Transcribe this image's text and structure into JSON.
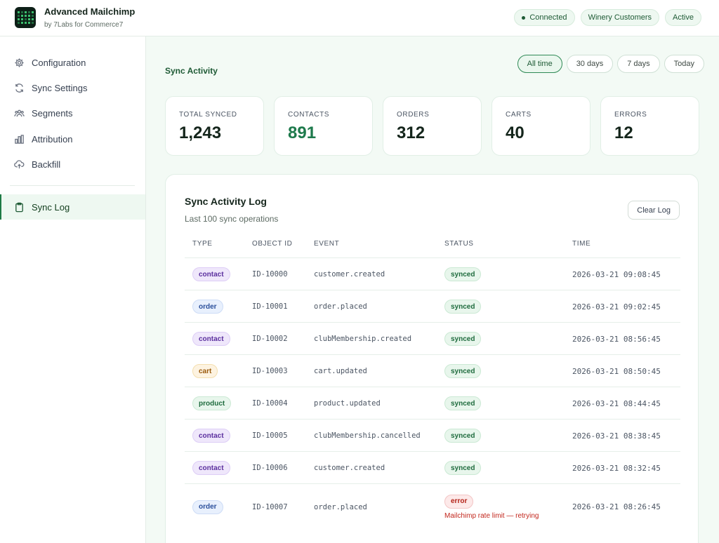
{
  "app": {
    "title": "Advanced Mailchimp",
    "subtitle": "by 7Labs for Commerce7"
  },
  "header_pills": [
    "Connected",
    "Winery Customers",
    "Active"
  ],
  "sidebar": {
    "items": [
      {
        "label": "Configuration",
        "icon": "gear-icon"
      },
      {
        "label": "Sync Settings",
        "icon": "sync-icon"
      },
      {
        "label": "Segments",
        "icon": "users-icon"
      },
      {
        "label": "Attribution",
        "icon": "bar-chart-icon"
      },
      {
        "label": "Backfill",
        "icon": "cloud-upload-icon"
      },
      {
        "label": "Sync Log",
        "icon": "clipboard-icon",
        "active": true
      }
    ]
  },
  "main": {
    "section_title": "Sync Activity",
    "ranges": [
      "All time",
      "30 days",
      "7 days",
      "Today"
    ],
    "active_range": "All time",
    "stats": [
      {
        "label": "TOTAL SYNCED",
        "value": "1,243"
      },
      {
        "label": "CONTACTS",
        "value": "891"
      },
      {
        "label": "ORDERS",
        "value": "312"
      },
      {
        "label": "CARTS",
        "value": "40"
      },
      {
        "label": "ERRORS",
        "value": "12"
      }
    ]
  },
  "log": {
    "title": "Sync Activity Log",
    "subtitle": "Last 100 sync operations",
    "clear_label": "Clear Log",
    "columns": [
      "TYPE",
      "OBJECT ID",
      "EVENT",
      "STATUS",
      "TIME"
    ],
    "rows": [
      {
        "type": "contact",
        "id": "ID-10000",
        "event": "customer.created",
        "status": "synced",
        "time": "2026-03-21 09:08:45",
        "message": ""
      },
      {
        "type": "order",
        "id": "ID-10001",
        "event": "order.placed",
        "status": "synced",
        "time": "2026-03-21 09:02:45",
        "message": ""
      },
      {
        "type": "contact",
        "id": "ID-10002",
        "event": "clubMembership.created",
        "status": "synced",
        "time": "2026-03-21 08:56:45",
        "message": ""
      },
      {
        "type": "cart",
        "id": "ID-10003",
        "event": "cart.updated",
        "status": "synced",
        "time": "2026-03-21 08:50:45",
        "message": ""
      },
      {
        "type": "product",
        "id": "ID-10004",
        "event": "product.updated",
        "status": "synced",
        "time": "2026-03-21 08:44:45",
        "message": ""
      },
      {
        "type": "contact",
        "id": "ID-10005",
        "event": "clubMembership.cancelled",
        "status": "synced",
        "time": "2026-03-21 08:38:45",
        "message": ""
      },
      {
        "type": "contact",
        "id": "ID-10006",
        "event": "customer.created",
        "status": "synced",
        "time": "2026-03-21 08:32:45",
        "message": ""
      },
      {
        "type": "order",
        "id": "ID-10007",
        "event": "order.placed",
        "status": "error",
        "time": "2026-03-21 08:26:45",
        "message": "Mailchimp rate limit — retrying"
      }
    ]
  }
}
